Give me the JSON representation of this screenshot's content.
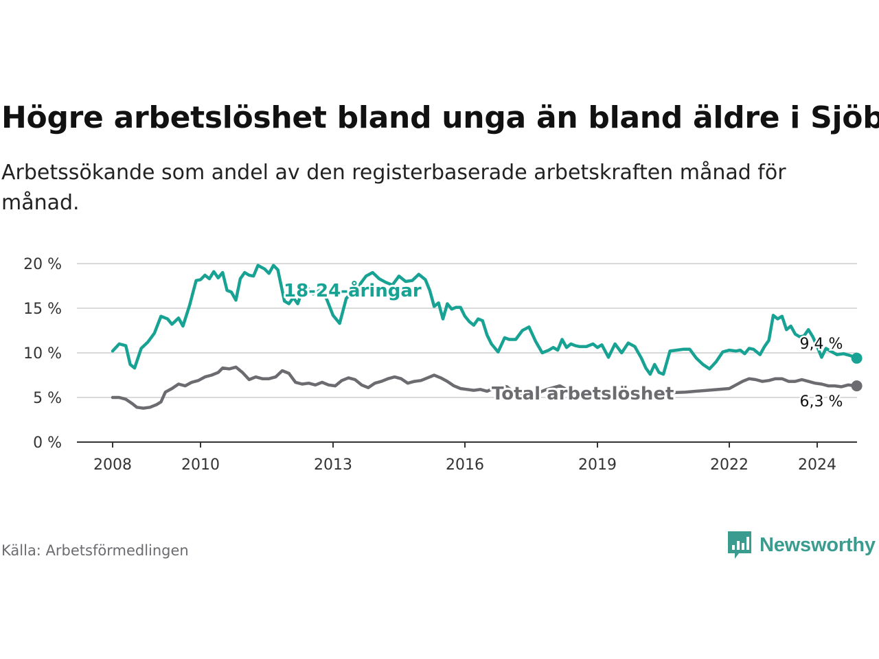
{
  "header": {
    "title": "Högre arbetslöshet bland unga än bland äldre i Sjöbo",
    "subtitle": "Arbetssökande som andel av den registerbaserade arbetskraften månad för månad."
  },
  "footer": {
    "source": "Källa: Arbetsförmedlingen",
    "brand": "Newsworthy"
  },
  "colors": {
    "youth": "#17a293",
    "total": "#6b6b70",
    "grid": "#d9d9d9",
    "axis": "#333333",
    "brand": "#3a9c8f"
  },
  "chart_data": {
    "type": "line",
    "title": "Högre arbetslöshet bland unga än bland äldre i Sjöbo",
    "xlabel": "",
    "ylabel": "",
    "ylim": [
      0,
      20
    ],
    "xlim": [
      2007.2,
      2024.9
    ],
    "y_ticks": [
      0,
      5,
      10,
      15,
      20
    ],
    "y_tick_labels": [
      "0 %",
      "5 %",
      "10 %",
      "15 %",
      "20 %"
    ],
    "x_ticks": [
      2008,
      2010,
      2013,
      2016,
      2019,
      2022,
      2024
    ],
    "x_tick_labels": [
      "2008",
      "2010",
      "2013",
      "2016",
      "2019",
      "2022",
      "2024"
    ],
    "grid": true,
    "series": [
      {
        "name": "18-24-åringar",
        "color": "#17a293",
        "end_label": "9,4 %",
        "points": [
          [
            2008.0,
            10.2
          ],
          [
            2008.15,
            11.0
          ],
          [
            2008.3,
            10.8
          ],
          [
            2008.4,
            8.7
          ],
          [
            2008.5,
            8.3
          ],
          [
            2008.65,
            10.5
          ],
          [
            2008.8,
            11.2
          ],
          [
            2008.95,
            12.2
          ],
          [
            2009.1,
            14.1
          ],
          [
            2009.25,
            13.8
          ],
          [
            2009.35,
            13.2
          ],
          [
            2009.5,
            13.9
          ],
          [
            2009.6,
            13.0
          ],
          [
            2009.75,
            15.3
          ],
          [
            2009.9,
            18.1
          ],
          [
            2010.0,
            18.2
          ],
          [
            2010.1,
            18.7
          ],
          [
            2010.2,
            18.3
          ],
          [
            2010.3,
            19.1
          ],
          [
            2010.4,
            18.4
          ],
          [
            2010.5,
            19.0
          ],
          [
            2010.6,
            17.0
          ],
          [
            2010.7,
            16.8
          ],
          [
            2010.8,
            15.9
          ],
          [
            2010.9,
            18.3
          ],
          [
            2011.0,
            19.0
          ],
          [
            2011.1,
            18.7
          ],
          [
            2011.2,
            18.6
          ],
          [
            2011.3,
            19.8
          ],
          [
            2011.45,
            19.4
          ],
          [
            2011.55,
            18.9
          ],
          [
            2011.65,
            19.8
          ],
          [
            2011.75,
            19.3
          ],
          [
            2011.9,
            15.8
          ],
          [
            2012.0,
            15.5
          ],
          [
            2012.1,
            16.2
          ],
          [
            2012.2,
            15.5
          ],
          [
            2012.3,
            16.9
          ],
          [
            2012.4,
            17.4
          ],
          [
            2012.55,
            16.6
          ],
          [
            2012.7,
            17.0
          ],
          [
            2012.85,
            16.1
          ],
          [
            2013.0,
            14.2
          ],
          [
            2013.15,
            13.3
          ],
          [
            2013.3,
            16.1
          ],
          [
            2013.45,
            16.9
          ],
          [
            2013.6,
            17.6
          ],
          [
            2013.75,
            18.6
          ],
          [
            2013.9,
            19.0
          ],
          [
            2014.05,
            18.3
          ],
          [
            2014.2,
            17.9
          ],
          [
            2014.35,
            17.6
          ],
          [
            2014.5,
            18.6
          ],
          [
            2014.65,
            18.0
          ],
          [
            2014.8,
            18.1
          ],
          [
            2014.95,
            18.8
          ],
          [
            2015.1,
            18.2
          ],
          [
            2015.2,
            17.0
          ],
          [
            2015.3,
            15.2
          ],
          [
            2015.4,
            15.6
          ],
          [
            2015.5,
            13.8
          ],
          [
            2015.6,
            15.5
          ],
          [
            2015.7,
            14.9
          ],
          [
            2015.8,
            15.1
          ],
          [
            2015.9,
            15.1
          ],
          [
            2016.0,
            14.1
          ],
          [
            2016.1,
            13.5
          ],
          [
            2016.2,
            13.1
          ],
          [
            2016.3,
            13.8
          ],
          [
            2016.4,
            13.6
          ],
          [
            2016.5,
            12.0
          ],
          [
            2016.6,
            11.0
          ],
          [
            2016.75,
            10.1
          ],
          [
            2016.9,
            11.7
          ],
          [
            2017.0,
            11.5
          ],
          [
            2017.15,
            11.5
          ],
          [
            2017.3,
            12.5
          ],
          [
            2017.45,
            12.9
          ],
          [
            2017.6,
            11.3
          ],
          [
            2017.75,
            10.0
          ],
          [
            2017.9,
            10.3
          ],
          [
            2018.0,
            10.6
          ],
          [
            2018.1,
            10.3
          ],
          [
            2018.2,
            11.5
          ],
          [
            2018.3,
            10.6
          ],
          [
            2018.4,
            11.0
          ],
          [
            2018.5,
            10.8
          ],
          [
            2018.6,
            10.7
          ],
          [
            2018.75,
            10.7
          ],
          [
            2018.9,
            11.0
          ],
          [
            2019.0,
            10.6
          ],
          [
            2019.1,
            10.9
          ],
          [
            2019.25,
            9.5
          ],
          [
            2019.4,
            11.0
          ],
          [
            2019.55,
            10.0
          ],
          [
            2019.7,
            11.1
          ],
          [
            2019.85,
            10.7
          ],
          [
            2020.0,
            9.4
          ],
          [
            2020.1,
            8.3
          ],
          [
            2020.2,
            7.6
          ],
          [
            2020.3,
            8.7
          ],
          [
            2020.4,
            7.8
          ],
          [
            2020.5,
            7.6
          ],
          [
            2020.65,
            10.2
          ],
          [
            2020.8,
            10.3
          ],
          [
            2020.95,
            10.4
          ],
          [
            2021.1,
            10.4
          ],
          [
            2021.25,
            9.4
          ],
          [
            2021.4,
            8.7
          ],
          [
            2021.55,
            8.2
          ],
          [
            2021.7,
            9.0
          ],
          [
            2021.85,
            10.1
          ],
          [
            2022.0,
            10.3
          ],
          [
            2022.15,
            10.2
          ],
          [
            2022.25,
            10.3
          ],
          [
            2022.35,
            9.9
          ],
          [
            2022.45,
            10.5
          ],
          [
            2022.55,
            10.4
          ],
          [
            2022.7,
            9.8
          ],
          [
            2022.8,
            10.7
          ],
          [
            2022.9,
            11.4
          ],
          [
            2023.0,
            14.2
          ],
          [
            2023.1,
            13.8
          ],
          [
            2023.2,
            14.1
          ],
          [
            2023.3,
            12.6
          ],
          [
            2023.4,
            13.0
          ],
          [
            2023.5,
            12.1
          ],
          [
            2023.6,
            11.8
          ],
          [
            2023.7,
            11.9
          ],
          [
            2023.8,
            12.6
          ],
          [
            2023.9,
            11.8
          ],
          [
            2024.0,
            10.7
          ],
          [
            2024.1,
            9.5
          ],
          [
            2024.2,
            10.5
          ],
          [
            2024.3,
            10.2
          ],
          [
            2024.45,
            9.8
          ],
          [
            2024.6,
            9.9
          ],
          [
            2024.75,
            9.7
          ],
          [
            2024.9,
            9.4
          ]
        ]
      },
      {
        "name": "Total arbetslöshet",
        "color": "#6b6b70",
        "end_label": "6,3 %",
        "points": [
          [
            2008.0,
            5.0
          ],
          [
            2008.15,
            5.0
          ],
          [
            2008.3,
            4.8
          ],
          [
            2008.45,
            4.3
          ],
          [
            2008.55,
            3.9
          ],
          [
            2008.7,
            3.8
          ],
          [
            2008.85,
            3.9
          ],
          [
            2009.0,
            4.2
          ],
          [
            2009.1,
            4.5
          ],
          [
            2009.2,
            5.6
          ],
          [
            2009.35,
            6.0
          ],
          [
            2009.5,
            6.5
          ],
          [
            2009.65,
            6.3
          ],
          [
            2009.8,
            6.7
          ],
          [
            2009.95,
            6.9
          ],
          [
            2010.1,
            7.3
          ],
          [
            2010.25,
            7.5
          ],
          [
            2010.4,
            7.8
          ],
          [
            2010.5,
            8.3
          ],
          [
            2010.65,
            8.2
          ],
          [
            2010.8,
            8.4
          ],
          [
            2010.95,
            7.8
          ],
          [
            2011.1,
            7.0
          ],
          [
            2011.25,
            7.3
          ],
          [
            2011.4,
            7.1
          ],
          [
            2011.55,
            7.1
          ],
          [
            2011.7,
            7.3
          ],
          [
            2011.85,
            8.0
          ],
          [
            2012.0,
            7.7
          ],
          [
            2012.15,
            6.7
          ],
          [
            2012.3,
            6.5
          ],
          [
            2012.45,
            6.6
          ],
          [
            2012.6,
            6.4
          ],
          [
            2012.75,
            6.7
          ],
          [
            2012.9,
            6.4
          ],
          [
            2013.05,
            6.3
          ],
          [
            2013.2,
            6.9
          ],
          [
            2013.35,
            7.2
          ],
          [
            2013.5,
            7.0
          ],
          [
            2013.65,
            6.4
          ],
          [
            2013.8,
            6.1
          ],
          [
            2013.95,
            6.6
          ],
          [
            2014.1,
            6.8
          ],
          [
            2014.25,
            7.1
          ],
          [
            2014.4,
            7.3
          ],
          [
            2014.55,
            7.1
          ],
          [
            2014.7,
            6.6
          ],
          [
            2014.85,
            6.8
          ],
          [
            2015.0,
            6.9
          ],
          [
            2015.15,
            7.2
          ],
          [
            2015.3,
            7.5
          ],
          [
            2015.45,
            7.2
          ],
          [
            2015.6,
            6.8
          ],
          [
            2015.75,
            6.3
          ],
          [
            2015.9,
            6.0
          ],
          [
            2016.05,
            5.9
          ],
          [
            2016.2,
            5.8
          ],
          [
            2016.35,
            5.9
          ],
          [
            2016.5,
            5.7
          ],
          [
            2016.65,
            6.0
          ],
          [
            2016.8,
            6.3
          ],
          [
            2016.95,
            6.2
          ],
          [
            2017.1,
            5.6
          ],
          [
            2017.25,
            5.2
          ],
          [
            2017.4,
            5.2
          ],
          [
            2017.55,
            5.5
          ],
          [
            2017.7,
            5.6
          ],
          [
            2017.85,
            5.9
          ],
          [
            2018.0,
            6.1
          ],
          [
            2018.15,
            6.3
          ],
          [
            2018.3,
            5.9
          ],
          [
            2018.45,
            5.5
          ],
          [
            2018.6,
            5.4
          ],
          [
            2019.0,
            5.1
          ],
          [
            2019.5,
            5.3
          ],
          [
            2020.0,
            5.4
          ],
          [
            2020.5,
            5.5
          ],
          [
            2021.0,
            5.6
          ],
          [
            2021.5,
            5.8
          ],
          [
            2022.0,
            6.0
          ],
          [
            2022.15,
            6.4
          ],
          [
            2022.3,
            6.8
          ],
          [
            2022.45,
            7.1
          ],
          [
            2022.6,
            7.0
          ],
          [
            2022.75,
            6.8
          ],
          [
            2022.9,
            6.9
          ],
          [
            2023.05,
            7.1
          ],
          [
            2023.2,
            7.1
          ],
          [
            2023.35,
            6.8
          ],
          [
            2023.5,
            6.8
          ],
          [
            2023.65,
            7.0
          ],
          [
            2023.8,
            6.8
          ],
          [
            2023.95,
            6.6
          ],
          [
            2024.1,
            6.5
          ],
          [
            2024.25,
            6.3
          ],
          [
            2024.4,
            6.3
          ],
          [
            2024.55,
            6.2
          ],
          [
            2024.7,
            6.4
          ],
          [
            2024.9,
            6.3
          ]
        ]
      }
    ]
  }
}
